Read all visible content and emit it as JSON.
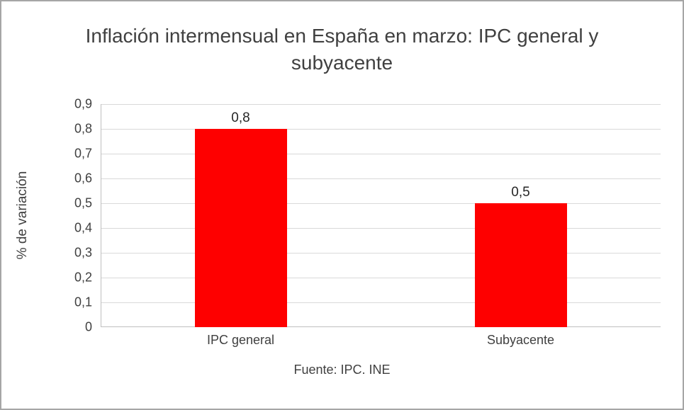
{
  "chart_data": {
    "type": "bar",
    "title": "Inflación intermensual en España en marzo: IPC general y subyacente",
    "categories": [
      "IPC general",
      "Subyacente"
    ],
    "values": [
      0.8,
      0.5
    ],
    "value_labels": [
      "0,8",
      "0,5"
    ],
    "ylabel": "% de variación",
    "ylim": [
      0,
      0.9
    ],
    "ytick_step": 0.1,
    "ytick_labels": [
      "0",
      "0,1",
      "0,2",
      "0,3",
      "0,4",
      "0,5",
      "0,6",
      "0,7",
      "0,8",
      "0,9"
    ],
    "grid": true,
    "legend": "none",
    "bar_color": "#fe0000",
    "source_note": "Fuente: IPC. INE"
  }
}
